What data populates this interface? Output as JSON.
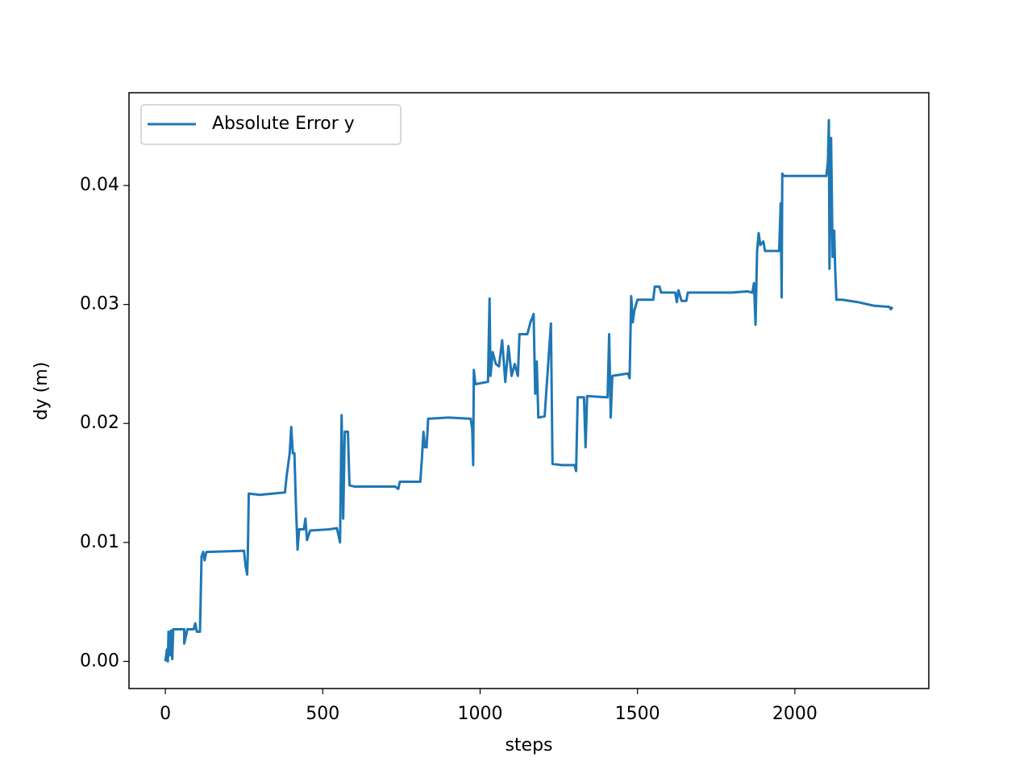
{
  "chart_data": {
    "type": "line",
    "xlabel": "steps",
    "ylabel": "dy (m)",
    "xlim": [
      -115.5,
      2425.5
    ],
    "ylim": [
      -0.00228,
      0.0478
    ],
    "xticks": [
      0,
      500,
      1000,
      1500,
      2000
    ],
    "yticks": [
      {
        "value": 0,
        "label": "0.00"
      },
      {
        "value": 0.01,
        "label": "0.01"
      },
      {
        "value": 0.02,
        "label": "0.02"
      },
      {
        "value": 0.03,
        "label": "0.03"
      },
      {
        "value": 0.04,
        "label": "0.04"
      }
    ],
    "legend": "upper left",
    "x": [
      0,
      5,
      8,
      10,
      14,
      18,
      22,
      25,
      60,
      60,
      70,
      90,
      95,
      100,
      110,
      115,
      120,
      125,
      130,
      250,
      255,
      260,
      262,
      265,
      300,
      340,
      380,
      385,
      395,
      400,
      405,
      410,
      415,
      420,
      425,
      440,
      445,
      450,
      460,
      520,
      545,
      555,
      560,
      565,
      570,
      580,
      585,
      600,
      730,
      740,
      745,
      810,
      815,
      820,
      825,
      830,
      835,
      900,
      970,
      975,
      978,
      980,
      985,
      1025,
      1030,
      1033,
      1040,
      1050,
      1060,
      1070,
      1080,
      1090,
      1100,
      1110,
      1120,
      1125,
      1150,
      1160,
      1170,
      1175,
      1180,
      1185,
      1205,
      1225,
      1230,
      1260,
      1300,
      1305,
      1310,
      1330,
      1335,
      1340,
      1400,
      1405,
      1410,
      1415,
      1420,
      1470,
      1475,
      1480,
      1485,
      1490,
      1500,
      1550,
      1555,
      1570,
      1575,
      1620,
      1625,
      1630,
      1640,
      1655,
      1660,
      1800,
      1850,
      1865,
      1870,
      1875,
      1880,
      1885,
      1890,
      1900,
      1905,
      1950,
      1955,
      1958,
      1960,
      1965,
      2100,
      2105,
      2108,
      2110,
      2115,
      2120,
      2125,
      2128,
      2132,
      2150,
      2200,
      2250,
      2300,
      2305,
      2310
    ],
    "series": [
      {
        "name": "Absolute Error y",
        "color": "#1f77b4",
        "values": [
          0,
          0.001,
          0,
          0.0025,
          0.0005,
          0.0026,
          0.0002,
          0.0027,
          0.0027,
          0.0015,
          0.0027,
          0.0027,
          0.0032,
          0.0025,
          0.0025,
          0.0088,
          0.0092,
          0.0085,
          0.0092,
          0.0093,
          0.008,
          0.0073,
          0.009,
          0.0141,
          0.014,
          0.0141,
          0.0142,
          0.0155,
          0.0175,
          0.0197,
          0.0175,
          0.0175,
          0.013,
          0.0094,
          0.0111,
          0.0111,
          0.012,
          0.0102,
          0.011,
          0.0111,
          0.0112,
          0.01,
          0.0207,
          0.012,
          0.0193,
          0.0193,
          0.0148,
          0.0147,
          0.0147,
          0.0145,
          0.0151,
          0.0151,
          0.017,
          0.0193,
          0.018,
          0.018,
          0.0204,
          0.0205,
          0.0204,
          0.0195,
          0.0165,
          0.0245,
          0.0233,
          0.0235,
          0.0305,
          0.024,
          0.026,
          0.025,
          0.0248,
          0.027,
          0.0235,
          0.0265,
          0.024,
          0.025,
          0.024,
          0.0275,
          0.0275,
          0.0285,
          0.0292,
          0.0225,
          0.0252,
          0.0205,
          0.0206,
          0.0284,
          0.0166,
          0.0165,
          0.0165,
          0.016,
          0.0222,
          0.0222,
          0.018,
          0.0223,
          0.0222,
          0.0222,
          0.0275,
          0.0205,
          0.024,
          0.0242,
          0.0238,
          0.0307,
          0.0285,
          0.0295,
          0.0304,
          0.0304,
          0.0315,
          0.0315,
          0.031,
          0.031,
          0.0302,
          0.0312,
          0.0303,
          0.0303,
          0.031,
          0.031,
          0.0311,
          0.031,
          0.0318,
          0.0283,
          0.0345,
          0.036,
          0.035,
          0.0353,
          0.0345,
          0.0345,
          0.0385,
          0.0306,
          0.041,
          0.0408,
          0.0408,
          0.042,
          0.0455,
          0.033,
          0.044,
          0.034,
          0.0362,
          0.033,
          0.0304,
          0.0304,
          0.0302,
          0.0299,
          0.0298,
          0.0296,
          0.0298
        ]
      }
    ]
  }
}
